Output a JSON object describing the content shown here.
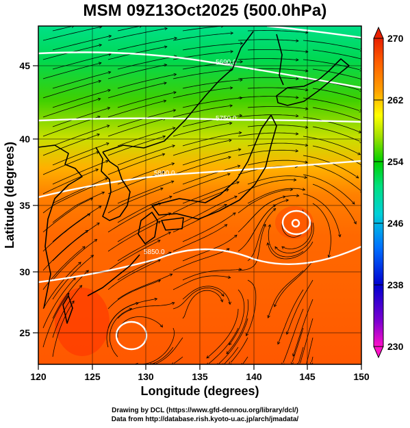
{
  "title": "MSM 09Z13Oct2025 (500.0hPa)",
  "credits": {
    "line1": "Drawing by DCL (https://www.gfd-dennou.org/library/dcl/)",
    "line2": "Data from http://database.rish.kyoto-u.ac.jp/arch/jmadata/"
  },
  "map": {
    "xlabel": "Longitude (degrees)",
    "ylabel": "Latitude  (degrees)",
    "lon_range": [
      120,
      150
    ],
    "lat_range": [
      22.5,
      48
    ],
    "lon_ticks": [
      "120",
      "125",
      "130",
      "135",
      "140",
      "145",
      "150"
    ],
    "lat_ticks": [
      "25",
      "30",
      "35",
      "40",
      "45"
    ],
    "grid": true,
    "field": "temperature shading (K)",
    "contour_labels": [
      "5690.0",
      "5750.0",
      "5800.0",
      "5850.0"
    ],
    "features": [
      "geopotential height contours (white)",
      "streamlines (black)",
      "coastlines (black)",
      "lows near 144E 34N and 128.5E 25N"
    ]
  },
  "colorbar": {
    "min": 230,
    "max": 270,
    "labels": [
      "270",
      "262",
      "254",
      "246",
      "238",
      "230"
    ],
    "colors": [
      "#ff0fc8",
      "#6a00d8",
      "#0000d0",
      "#0080ff",
      "#00d8d8",
      "#00e090",
      "#00d040",
      "#80d800",
      "#ffff00",
      "#ffa000",
      "#ff6000",
      "#f02000"
    ]
  }
}
